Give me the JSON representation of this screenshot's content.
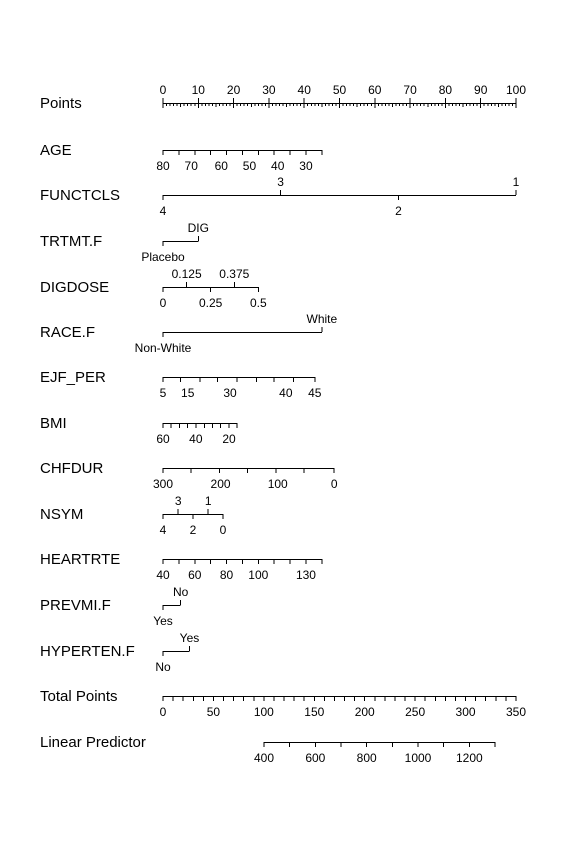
{
  "chart_data": {
    "type": "nomogram",
    "title": "",
    "rows": [
      {
        "label": "Points",
        "line": [
          0,
          100
        ],
        "minor_step": 1,
        "labels": [
          {
            "text": "0",
            "at": 0,
            "side": "above"
          },
          {
            "text": "10",
            "at": 10,
            "side": "above"
          },
          {
            "text": "20",
            "at": 20,
            "side": "above"
          },
          {
            "text": "30",
            "at": 30,
            "side": "above"
          },
          {
            "text": "40",
            "at": 40,
            "side": "above"
          },
          {
            "text": "50",
            "at": 50,
            "side": "above"
          },
          {
            "text": "60",
            "at": 60,
            "side": "above"
          },
          {
            "text": "70",
            "at": 70,
            "side": "above"
          },
          {
            "text": "80",
            "at": 80,
            "side": "above"
          },
          {
            "text": "90",
            "at": 90,
            "side": "above"
          },
          {
            "text": "100",
            "at": 100,
            "side": "above"
          }
        ]
      },
      {
        "label": "AGE",
        "line": [
          0,
          45
        ],
        "ticks": [
          0,
          4.5,
          9,
          13.5,
          18,
          22.5,
          27,
          31.5,
          36,
          40.5,
          45
        ],
        "labels": [
          {
            "text": "80",
            "at": 0
          },
          {
            "text": "70",
            "at": 8
          },
          {
            "text": "60",
            "at": 16.5
          },
          {
            "text": "50",
            "at": 24.5
          },
          {
            "text": "40",
            "at": 32.5
          },
          {
            "text": "30",
            "at": 40.5
          }
        ]
      },
      {
        "label": "FUNCTCLS",
        "line": [
          0,
          100
        ],
        "ticks": [
          0,
          33.3,
          66.7,
          100
        ],
        "labels": [
          {
            "text": "4",
            "at": 0,
            "side": "below"
          },
          {
            "text": "3",
            "at": 33.3,
            "side": "above"
          },
          {
            "text": "2",
            "at": 66.7,
            "side": "below"
          },
          {
            "text": "1",
            "at": 100,
            "side": "above"
          }
        ]
      },
      {
        "label": "TRTMT.F",
        "line": [
          0,
          10
        ],
        "ticks": [
          0,
          10
        ],
        "labels": [
          {
            "text": "Placebo",
            "at": 0,
            "side": "below"
          },
          {
            "text": "DIG",
            "at": 10,
            "side": "above"
          }
        ]
      },
      {
        "label": "DIGDOSE",
        "line": [
          0,
          27
        ],
        "ticks": [
          0,
          6.7,
          13.5,
          20.2,
          27
        ],
        "labels": [
          {
            "text": "0",
            "at": 0,
            "side": "below"
          },
          {
            "text": "0.125",
            "at": 6.7,
            "side": "above"
          },
          {
            "text": "0.25",
            "at": 13.5,
            "side": "below"
          },
          {
            "text": "0.375",
            "at": 20.2,
            "side": "above"
          },
          {
            "text": "0.5",
            "at": 27,
            "side": "below"
          }
        ]
      },
      {
        "label": "RACE.F",
        "line": [
          0,
          45
        ],
        "ticks": [
          0,
          45
        ],
        "labels": [
          {
            "text": "Non-White",
            "at": 0,
            "side": "below"
          },
          {
            "text": "White",
            "at": 45,
            "side": "above"
          }
        ]
      },
      {
        "label": "EJF_PER",
        "line": [
          0,
          43
        ],
        "ticks": [
          0,
          5,
          10.5,
          15.5,
          21,
          26.5,
          31.5,
          37,
          43
        ],
        "labels": [
          {
            "text": "5",
            "at": 0
          },
          {
            "text": "15",
            "at": 7
          },
          {
            "text": "30",
            "at": 19
          },
          {
            "text": "40",
            "at": 34.8
          },
          {
            "text": "45",
            "at": 43
          }
        ]
      },
      {
        "label": "BMI",
        "line": [
          0,
          21
        ],
        "ticks": [
          0,
          2.3,
          4.7,
          7,
          9.3,
          11.7,
          14,
          16.3,
          18.7,
          21
        ],
        "labels": [
          {
            "text": "60",
            "at": 0
          },
          {
            "text": "40",
            "at": 9.3
          },
          {
            "text": "20",
            "at": 18.7
          }
        ]
      },
      {
        "label": "CHFDUR",
        "line": [
          0,
          48.5
        ],
        "ticks": [
          0,
          8,
          16,
          24,
          32,
          40,
          48.5
        ],
        "labels": [
          {
            "text": "300",
            "at": 0
          },
          {
            "text": "200",
            "at": 16.3
          },
          {
            "text": "100",
            "at": 32.5
          },
          {
            "text": "0",
            "at": 48.5
          }
        ]
      },
      {
        "label": "NSYM",
        "line": [
          0,
          17
        ],
        "ticks": [
          0,
          4.3,
          8.5,
          12.8,
          17
        ],
        "labels": [
          {
            "text": "4",
            "at": 0,
            "side": "below"
          },
          {
            "text": "3",
            "at": 4.3,
            "side": "above"
          },
          {
            "text": "2",
            "at": 8.5,
            "side": "below"
          },
          {
            "text": "1",
            "at": 12.8,
            "side": "above"
          },
          {
            "text": "0",
            "at": 17,
            "side": "below"
          }
        ]
      },
      {
        "label": "HEARTRTE",
        "line": [
          0,
          45
        ],
        "ticks": [
          0,
          4.5,
          9,
          13.5,
          18,
          22.5,
          27,
          31.5,
          36,
          40.5,
          45
        ],
        "labels": [
          {
            "text": "40",
            "at": 0
          },
          {
            "text": "60",
            "at": 9
          },
          {
            "text": "80",
            "at": 18
          },
          {
            "text": "100",
            "at": 27
          },
          {
            "text": "130",
            "at": 40.5
          }
        ]
      },
      {
        "label": "PREVMI.F",
        "line": [
          0,
          5
        ],
        "ticks": [
          0,
          5
        ],
        "labels": [
          {
            "text": "Yes",
            "at": 0,
            "side": "below"
          },
          {
            "text": "No",
            "at": 5,
            "side": "above"
          }
        ]
      },
      {
        "label": "HYPERTEN.F",
        "line": [
          0,
          7.5
        ],
        "ticks": [
          0,
          7.5
        ],
        "labels": [
          {
            "text": "No",
            "at": 0,
            "side": "below"
          },
          {
            "text": "Yes",
            "at": 7.5,
            "side": "above"
          }
        ]
      },
      {
        "label": "Total Points",
        "line": [
          0,
          350
        ],
        "ticks": [
          0,
          10,
          20,
          30,
          40,
          50,
          60,
          70,
          80,
          90,
          100,
          110,
          120,
          130,
          140,
          150,
          160,
          170,
          180,
          190,
          200,
          210,
          220,
          230,
          240,
          250,
          260,
          270,
          280,
          290,
          300,
          310,
          320,
          330,
          340,
          350
        ],
        "labels": [
          {
            "text": "0",
            "at": 0
          },
          {
            "text": "50",
            "at": 50
          },
          {
            "text": "100",
            "at": 100
          },
          {
            "text": "150",
            "at": 150
          },
          {
            "text": "200",
            "at": 200
          },
          {
            "text": "250",
            "at": 250
          },
          {
            "text": "300",
            "at": 300
          },
          {
            "text": "350",
            "at": 350
          }
        ]
      },
      {
        "label": "Linear Predictor",
        "line": [
          400,
          1300
        ],
        "ticks": [
          400,
          500,
          600,
          700,
          800,
          900,
          1000,
          1100,
          1200,
          1300
        ],
        "labels": [
          {
            "text": "400",
            "at": 400
          },
          {
            "text": "600",
            "at": 600
          },
          {
            "text": "800",
            "at": 800
          },
          {
            "text": "1000",
            "at": 1000
          },
          {
            "text": "1200",
            "at": 1200
          }
        ]
      }
    ]
  }
}
